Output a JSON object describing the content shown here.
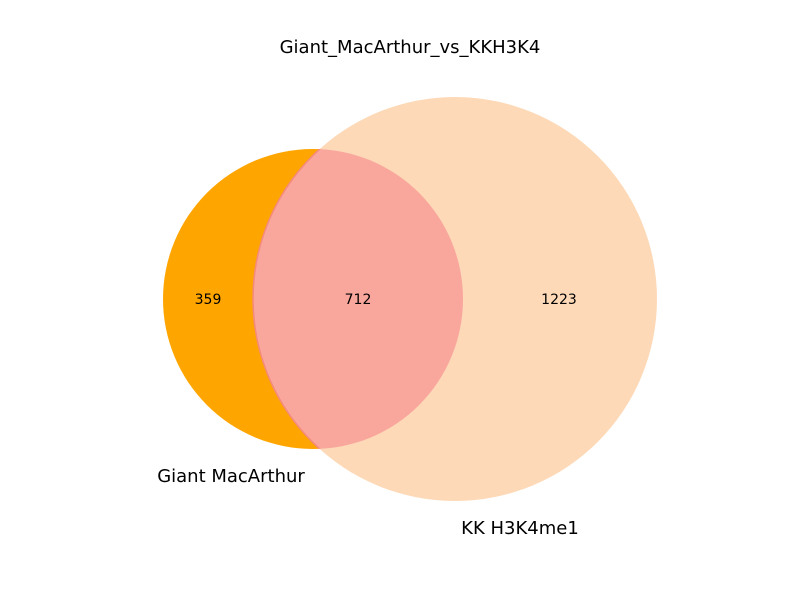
{
  "title": "Giant_MacArthur_vs_KKH3K4",
  "sets": {
    "a": {
      "name": "Giant MacArthur",
      "color": "#ffa500"
    },
    "b": {
      "name": "KK H3K4me1",
      "color": "#fdd9b7"
    }
  },
  "regions": {
    "a_only": "359",
    "intersection": "712",
    "b_only": "1223"
  },
  "intersection_color": "#f9a69c",
  "intersection_edge_color": "#f58a7a"
}
